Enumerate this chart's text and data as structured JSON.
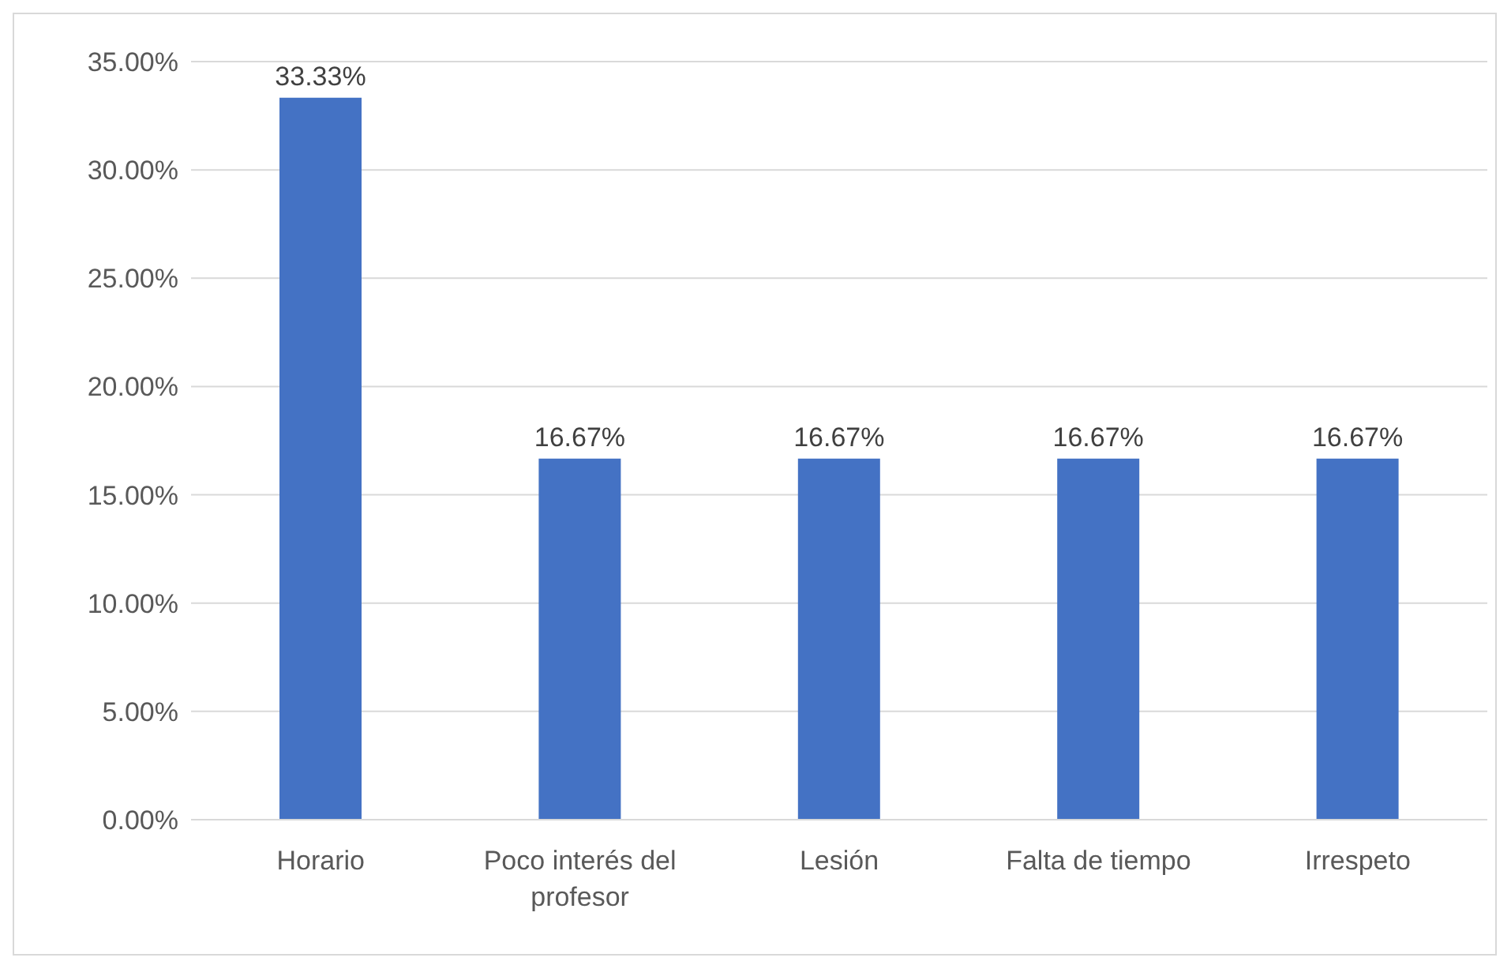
{
  "chart_data": {
    "type": "bar",
    "categories": [
      "Horario",
      "Poco interés del profesor",
      "Lesión",
      "Falta de tiempo",
      "Irrespeto"
    ],
    "values": [
      33.33,
      16.67,
      16.67,
      16.67,
      16.67
    ],
    "value_labels": [
      "33.33%",
      "16.67%",
      "16.67%",
      "16.67%",
      "16.67%"
    ],
    "color": "#4472c4",
    "ylim": [
      0,
      35
    ],
    "yticks": [
      {
        "value": 0,
        "label": "0.00%"
      },
      {
        "value": 5,
        "label": "5.00%"
      },
      {
        "value": 10,
        "label": "10.00%"
      },
      {
        "value": 15,
        "label": "15.00%"
      },
      {
        "value": 20,
        "label": "20.00%"
      },
      {
        "value": 25,
        "label": "25.00%"
      },
      {
        "value": 30,
        "label": "30.00%"
      },
      {
        "value": 35,
        "label": "35.00%"
      }
    ],
    "grid": "y",
    "legend": false
  }
}
